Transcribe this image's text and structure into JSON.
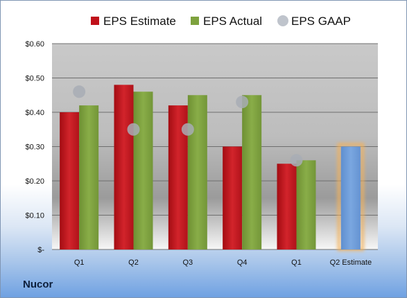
{
  "company": "Nucor",
  "legend": [
    {
      "label": "EPS Estimate",
      "color": "#c0111a",
      "shape": "square"
    },
    {
      "label": "EPS Actual",
      "color": "#7ea23e",
      "shape": "square"
    },
    {
      "label": "EPS GAAP",
      "color": "#bfc4cc",
      "shape": "circle"
    }
  ],
  "chart_data": {
    "type": "bar",
    "categories": [
      "Q1",
      "Q2",
      "Q3",
      "Q4",
      "Q1",
      "Q2 Estimate"
    ],
    "ylim": [
      0,
      0.6
    ],
    "yticks": [
      0,
      0.1,
      0.2,
      0.3,
      0.4,
      0.5,
      0.6
    ],
    "ytick_labels": [
      "$-",
      "$0.10",
      "$0.20",
      "$0.30",
      "$0.40",
      "$0.50",
      "$0.60"
    ],
    "grid": true,
    "legend_position": "top",
    "series": [
      {
        "name": "EPS Estimate",
        "color": "#c0111a",
        "values": [
          0.4,
          0.48,
          0.42,
          0.3,
          0.25,
          null
        ]
      },
      {
        "name": "EPS Actual",
        "color": "#7ea23e",
        "values": [
          0.42,
          0.46,
          0.45,
          0.45,
          0.26,
          null
        ]
      },
      {
        "name": "EPS GAAP",
        "color": "#a8adb5",
        "values": [
          0.46,
          0.35,
          0.35,
          0.43,
          0.26,
          null
        ]
      }
    ],
    "forecast": {
      "category": "Q2 Estimate",
      "value": 0.3,
      "color": "#6d9bd8",
      "glow": "#f5b25a"
    }
  }
}
